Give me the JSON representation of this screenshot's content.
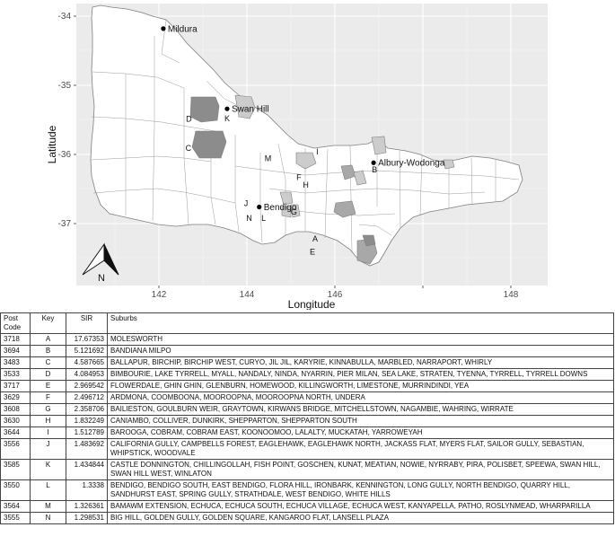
{
  "map": {
    "x_axis_title": "Longitude",
    "y_axis_title": "Latitude",
    "x_ticks": [
      "142",
      "144",
      "146",
      "148"
    ],
    "y_ticks": [
      "-34",
      "-35",
      "-36",
      "-37"
    ],
    "north_label": "N",
    "colors": {
      "panel": "#ebebeb",
      "region_fill": "#ffffff",
      "region_border": "#7f7f7f",
      "highlight_light": "#cccccc",
      "highlight_mid": "#a8a8a8",
      "highlight_dark": "#8c8c8c"
    },
    "cities": [
      {
        "name": "Mildura",
        "lon": 142.1,
        "lat": -34.18
      },
      {
        "name": "Swan Hill",
        "lon": 143.55,
        "lat": -35.34
      },
      {
        "name": "Albury-Wodonga",
        "lon": 146.88,
        "lat": -36.12
      },
      {
        "name": "Bendigo",
        "lon": 144.28,
        "lat": -36.76
      }
    ],
    "keys": [
      {
        "key": "A",
        "lon": 145.55,
        "lat": -37.22
      },
      {
        "key": "B",
        "lon": 146.9,
        "lat": -36.22
      },
      {
        "key": "C",
        "lon": 142.67,
        "lat": -35.91
      },
      {
        "key": "D",
        "lon": 142.68,
        "lat": -35.49
      },
      {
        "key": "E",
        "lon": 145.49,
        "lat": -37.41
      },
      {
        "key": "F",
        "lon": 145.18,
        "lat": -36.33
      },
      {
        "key": "G",
        "lon": 145.07,
        "lat": -36.83
      },
      {
        "key": "H",
        "lon": 145.34,
        "lat": -36.44
      },
      {
        "key": "I",
        "lon": 145.6,
        "lat": -35.96
      },
      {
        "key": "J",
        "lon": 143.98,
        "lat": -36.71
      },
      {
        "key": "K",
        "lon": 143.55,
        "lat": -35.48
      },
      {
        "key": "L",
        "lon": 144.38,
        "lat": -36.92
      },
      {
        "key": "M",
        "lon": 144.48,
        "lat": -36.06
      },
      {
        "key": "N",
        "lon": 144.05,
        "lat": -36.92
      }
    ]
  },
  "table": {
    "headers": [
      "Post Code",
      "Key",
      "SIR",
      "Suburbs"
    ],
    "rows": [
      {
        "postcode": "3718",
        "key": "A",
        "sir": "17.67353",
        "suburbs": "MOLESWORTH"
      },
      {
        "postcode": "3694",
        "key": "B",
        "sir": "5.121692",
        "suburbs": "BANDIANA MILPO"
      },
      {
        "postcode": "3483",
        "key": "C",
        "sir": "4.587665",
        "suburbs": "BALLAPUR, BIRCHIP, BIRCHIP WEST, CURYO, JIL JIL, KARYRIE, KINNABULLA, MARBLED, NARRAPORT, WHIRLY"
      },
      {
        "postcode": "3533",
        "key": "D",
        "sir": "4.084953",
        "suburbs": "BIMBOURIE, LAKE TYRRELL, MYALL, NANDALY, NINDA, NYARRIN, PIER MILAN, SEA LAKE, STRATEN, TYENNA, TYRRELL, TYRRELL DOWNS"
      },
      {
        "postcode": "3717",
        "key": "E",
        "sir": "2.969542",
        "suburbs": "FLOWERDALE, GHIN GHIN, GLENBURN, HOMEWOOD, KILLINGWORTH, LIMESTONE, MURRINDINDI, YEA"
      },
      {
        "postcode": "3629",
        "key": "F",
        "sir": "2.496712",
        "suburbs": "ARDMONA, COOMBOONA, MOOROOPNA, MOOROOPNA NORTH, UNDERA"
      },
      {
        "postcode": "3608",
        "key": "G",
        "sir": "2.358706",
        "suburbs": "BAILIESTON, GOULBURN WEIR, GRAYTOWN, KIRWANS BRIDGE, MITCHELLSTOWN, NAGAMBIE, WAHRING, WIRRATE"
      },
      {
        "postcode": "3630",
        "key": "H",
        "sir": "1.832249",
        "suburbs": "CANIAMBO, COLLIVER, DUNKIRK, SHEPPARTON, SHEPPARTON SOUTH"
      },
      {
        "postcode": "3644",
        "key": "I",
        "sir": "1.512789",
        "suburbs": "BAROOGA, COBRAM, COBRAM EAST, KOONOOMOO, LALALTY, MUCKATAH, YARROWEYAH"
      },
      {
        "postcode": "3556",
        "key": "J",
        "sir": "1.483692",
        "suburbs": "CALIFORNIA GULLY, CAMPBELLS FOREST, EAGLEHAWK, EAGLEHAWK NORTH, JACKASS FLAT, MYERS FLAT, SAILOR GULLY, SEBASTIAN, WHIPSTICK, WOODVALE"
      },
      {
        "postcode": "3585",
        "key": "K",
        "sir": "1.434844",
        "suburbs": "CASTLE DONNINGTON, CHILLINGOLLAH, FISH POINT, GOSCHEN, KUNAT, MEATIAN, NOWIE, NYRRABY, PIRA, POLISBET, SPEEWA, SWAN HILL, SWAN HILL WEST, WINLATON"
      },
      {
        "postcode": "3550",
        "key": "L",
        "sir": "1.3338",
        "suburbs": "BENDIGO, BENDIGO SOUTH, EAST BENDIGO, FLORA HILL, IRONBARK, KENNINGTON, LONG GULLY, NORTH BENDIGO, QUARRY HILL, SANDHURST EAST, SPRING GULLY, STRATHDALE, WEST BENDIGO, WHITE HILLS"
      },
      {
        "postcode": "3564",
        "key": "M",
        "sir": "1.326361",
        "suburbs": "BAMAWM EXTENSION, ECHUCA, ECHUCA SOUTH, ECHUCA VILLAGE, ECHUCA WEST, KANYAPELLA, PATHO, ROSLYNMEAD, WHARPARILLA"
      },
      {
        "postcode": "3555",
        "key": "N",
        "sir": "1.298531",
        "suburbs": "BIG HILL, GOLDEN GULLY, GOLDEN SQUARE, KANGAROO FLAT, LANSELL PLAZA"
      }
    ]
  }
}
